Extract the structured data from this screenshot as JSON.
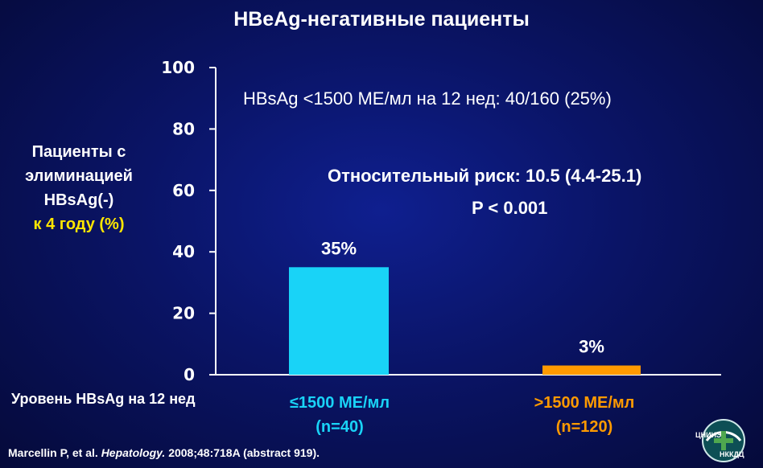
{
  "title": "HBeAg-негативные пациенты",
  "y_axis_label": {
    "line1": "Пациенты с",
    "line2": "элиминацией",
    "line3": "HBsAg(-)",
    "line4": "к 4 году (%)"
  },
  "x_axis_label": "Уровень HBsAg на 12 нед",
  "notes": {
    "threshold": "HBsAg <1500 МЕ/мл на 12 нед: 40/160 (25%)",
    "relative_risk": "Относительный риск: 10.5 (4.4-25.1)",
    "p_value": "P < 0.001"
  },
  "citation": {
    "authors": "Marcellin P, et al.",
    "journal": "Hepatology.",
    "details": "2008;48:718A (abstract 919)."
  },
  "logo": {
    "text_top": "ЦНИИЭ",
    "text_bottom": "НККДЦ"
  },
  "colors": {
    "background": "#0a1466",
    "bar_low": "#19d3f7",
    "bar_high": "#ff9a00",
    "yellow_text": "#ffe600"
  },
  "chart_data": {
    "type": "bar",
    "categories": [
      "≤1500 МЕ/мл (n=40)",
      ">1500 МЕ/мл (n=120)"
    ],
    "category_lines": [
      [
        "≤1500 МЕ/мл",
        "(n=40)"
      ],
      [
        ">1500 МЕ/мл",
        "(n=120)"
      ]
    ],
    "values": [
      35,
      3
    ],
    "value_labels": [
      "35%",
      "3%"
    ],
    "bar_colors": [
      "#19d3f7",
      "#ff9a00"
    ],
    "ylim": [
      0,
      100
    ],
    "yticks": [
      0,
      20,
      40,
      60,
      80,
      100
    ],
    "grid": false
  }
}
